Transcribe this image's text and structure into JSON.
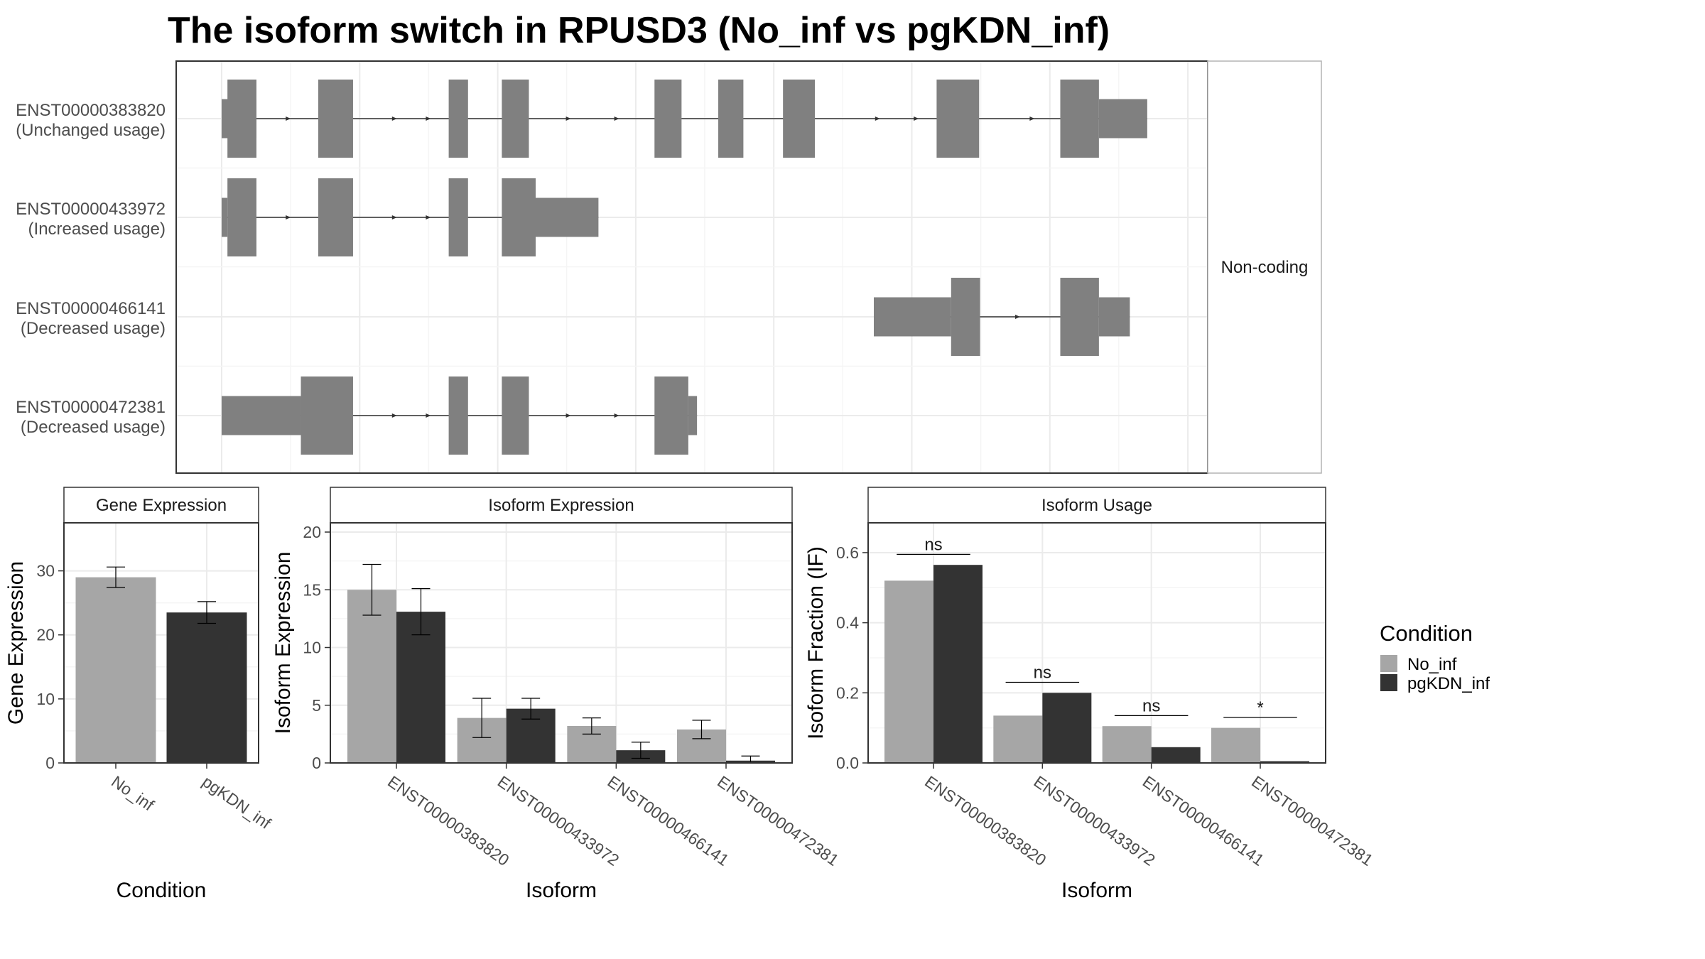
{
  "title": "The isoform switch in RPUSD3 (No_inf vs pgKDN_inf)",
  "colors": {
    "No_inf": "#a6a6a6",
    "pgKDN_inf": "#333333",
    "transcript": "#808080"
  },
  "legend": {
    "title": "Condition",
    "items": [
      {
        "label": "No_inf",
        "color": "#a6a6a6"
      },
      {
        "label": "pgKDN_inf",
        "color": "#333333"
      }
    ]
  },
  "chart_data": [
    {
      "type": "other",
      "panel": "transcript-structure",
      "strip_label": "Non-coding",
      "genomic_range": [
        0,
        1000
      ],
      "isoforms": [
        {
          "id": "ENST00000383820",
          "usage": "(Unchanged usage)",
          "exons": [
            [
              0,
              36,
              "s"
            ],
            [
              6,
              36,
              "t"
            ],
            [
              100,
              136,
              "t"
            ],
            [
              235,
              255,
              "t"
            ],
            [
              290,
              318,
              "t"
            ],
            [
              448,
              476,
              "t"
            ],
            [
              514,
              540,
              "t"
            ],
            [
              581,
              614,
              "t"
            ],
            [
              740,
              784,
              "t"
            ],
            [
              868,
              908,
              "t"
            ],
            [
              908,
              958,
              "s"
            ]
          ],
          "arrows": [
            70,
            180,
            215,
            360,
            410,
            520,
            680,
            720,
            840
          ]
        },
        {
          "id": "ENST00000433972",
          "usage": "(Increased usage)",
          "exons": [
            [
              0,
              6,
              "s"
            ],
            [
              6,
              36,
              "t"
            ],
            [
              100,
              136,
              "t"
            ],
            [
              235,
              255,
              "t"
            ],
            [
              290,
              325,
              "t"
            ],
            [
              325,
              390,
              "s"
            ]
          ],
          "arrows": [
            70,
            180,
            215
          ]
        },
        {
          "id": "ENST00000466141",
          "usage": "(Decreased usage)",
          "exons": [
            [
              675,
              755,
              "s"
            ],
            [
              755,
              785,
              "t"
            ],
            [
              868,
              908,
              "t"
            ],
            [
              908,
              940,
              "s"
            ]
          ],
          "arrows": [
            825
          ]
        },
        {
          "id": "ENST00000472381",
          "usage": "(Decreased usage)",
          "exons": [
            [
              0,
              82,
              "s"
            ],
            [
              82,
              136,
              "t"
            ],
            [
              235,
              255,
              "t"
            ],
            [
              290,
              318,
              "t"
            ],
            [
              448,
              483,
              "t"
            ],
            [
              483,
              492,
              "s"
            ]
          ],
          "arrows": [
            180,
            215,
            360,
            410
          ]
        }
      ]
    },
    {
      "type": "bar",
      "panel": "gene-expression",
      "strip_label": "Gene Expression",
      "xlabel": "Condition",
      "ylabel": "Gene Expression",
      "ylim": [
        0,
        37.5
      ],
      "yticks": [
        0,
        10,
        20,
        30
      ],
      "categories": [
        "No_inf",
        "pgKDN_inf"
      ],
      "values": [
        29.0,
        23.5
      ],
      "error_low": [
        27.4,
        21.8
      ],
      "error_high": [
        30.6,
        25.2
      ]
    },
    {
      "type": "bar",
      "panel": "isoform-expression",
      "strip_label": "Isoform Expression",
      "xlabel": "Isoform",
      "ylabel": "Isoform Expression",
      "ylim": [
        0,
        20.8
      ],
      "yticks": [
        0,
        5,
        10,
        15,
        20
      ],
      "categories": [
        "ENST00000383820",
        "ENST00000433972",
        "ENST00000466141",
        "ENST00000472381"
      ],
      "series": [
        {
          "name": "No_inf",
          "values": [
            15.0,
            3.9,
            3.2,
            2.9
          ],
          "error_low": [
            12.8,
            2.2,
            2.5,
            2.1
          ],
          "error_high": [
            17.2,
            5.6,
            3.9,
            3.7
          ]
        },
        {
          "name": "pgKDN_inf",
          "values": [
            13.1,
            4.7,
            1.1,
            0.2
          ],
          "error_low": [
            11.1,
            3.8,
            0.4,
            0.0
          ],
          "error_high": [
            15.1,
            5.6,
            1.8,
            0.6
          ]
        }
      ]
    },
    {
      "type": "bar",
      "panel": "isoform-usage",
      "strip_label": "Isoform Usage",
      "xlabel": "Isoform",
      "ylabel": "Isoform Fraction (IF)",
      "ylim": [
        0,
        0.685
      ],
      "yticks": [
        0,
        0.2,
        0.4,
        0.6
      ],
      "ytick_labels": [
        "0.0",
        "0.2",
        "0.4",
        "0.6"
      ],
      "categories": [
        "ENST00000383820",
        "ENST00000433972",
        "ENST00000466141",
        "ENST00000472381"
      ],
      "series": [
        {
          "name": "No_inf",
          "values": [
            0.52,
            0.135,
            0.105,
            0.1
          ]
        },
        {
          "name": "pgKDN_inf",
          "values": [
            0.565,
            0.2,
            0.045,
            0.005
          ]
        }
      ],
      "significance": [
        {
          "label": "ns",
          "y": 0.595
        },
        {
          "label": "ns",
          "y": 0.23
        },
        {
          "label": "ns",
          "y": 0.135
        },
        {
          "label": "*",
          "y": 0.13
        }
      ]
    }
  ]
}
